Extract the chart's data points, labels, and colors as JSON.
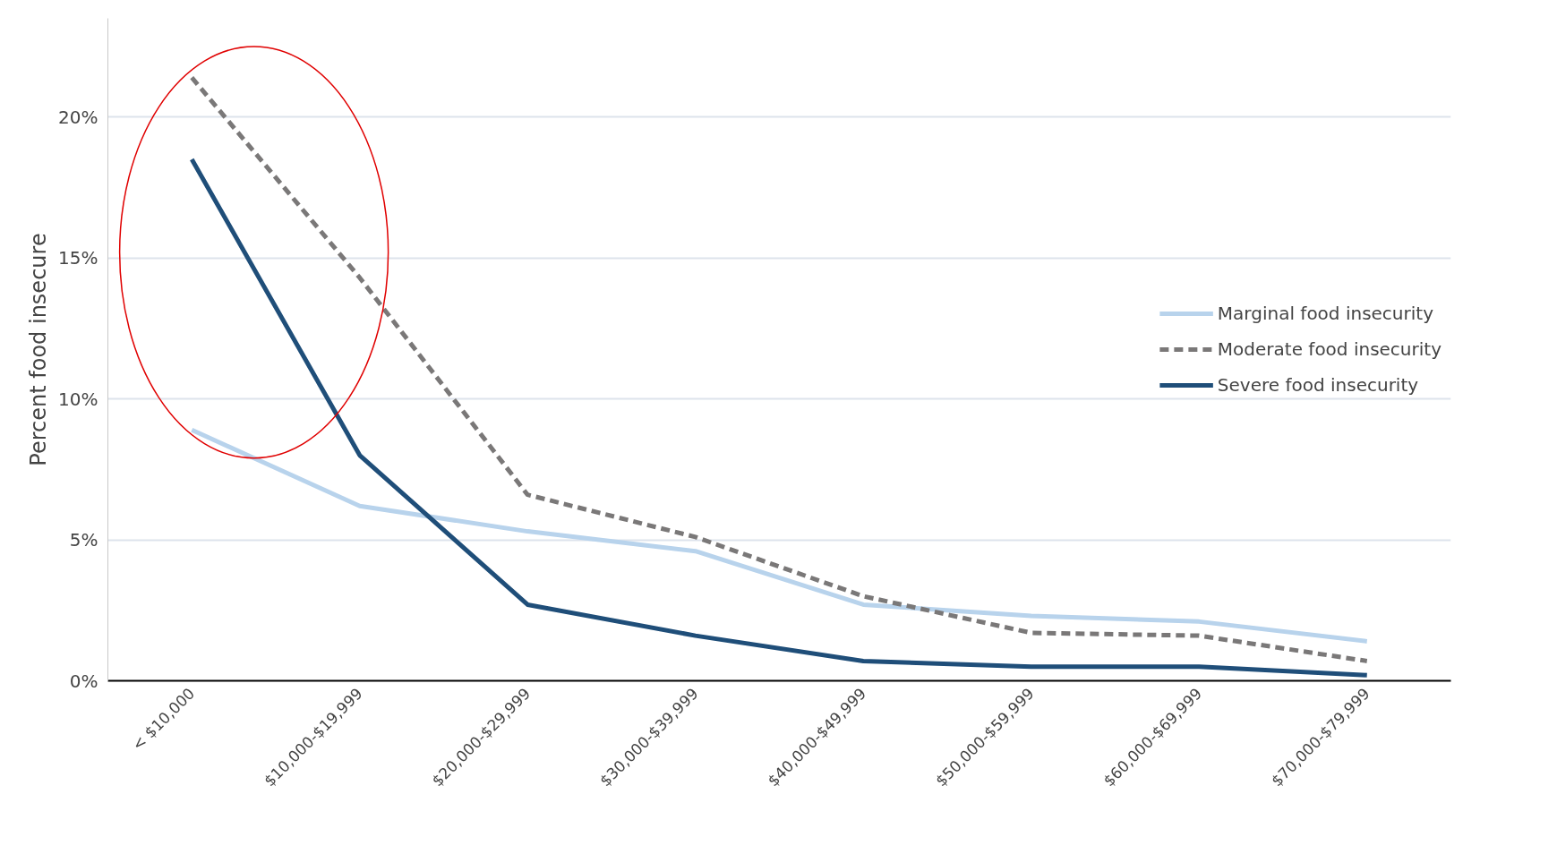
{
  "chart_data": {
    "type": "line",
    "ylabel": "Percent food insecure",
    "categories": [
      "< $10,000",
      "$10,000-$19,999",
      "$20,000-$29,999",
      "$30,000-$39,999",
      "$40,000-$49,999",
      "$50,000-$59,999",
      "$60,000-$69,999",
      "$70,000-$79,999"
    ],
    "series": [
      {
        "name": "Marginal food insecurity",
        "color": "#b8d3ec",
        "line_style": "solid",
        "values": [
          8.9,
          6.2,
          5.3,
          4.6,
          2.7,
          2.3,
          2.1,
          1.4
        ]
      },
      {
        "name": "Moderate food insecurity",
        "color": "#7a7878",
        "line_style": "dashed",
        "values": [
          21.4,
          14.3,
          6.6,
          5.1,
          3.0,
          1.7,
          1.6,
          0.7
        ]
      },
      {
        "name": "Severe food insecurity",
        "color": "#1f4e79",
        "line_style": "solid",
        "values": [
          18.5,
          8.0,
          2.7,
          1.6,
          0.7,
          0.5,
          0.5,
          0.2
        ]
      }
    ],
    "ylim": [
      0,
      23.5
    ],
    "yticks": [
      {
        "value": 0,
        "label": "0%"
      },
      {
        "value": 5,
        "label": "5%"
      },
      {
        "value": 10,
        "label": "10%"
      },
      {
        "value": 15,
        "label": "15%"
      },
      {
        "value": 20,
        "label": "20%"
      }
    ],
    "grid": "y",
    "legend": "right",
    "marker": "none"
  }
}
